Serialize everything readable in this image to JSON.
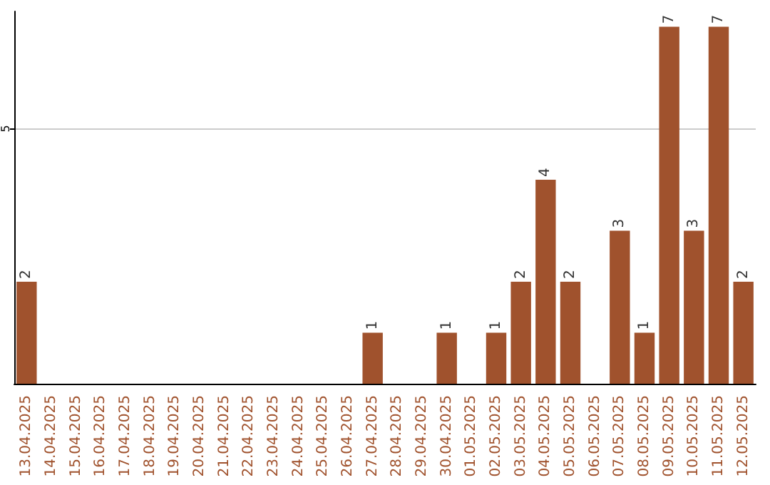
{
  "chart_data": {
    "type": "bar",
    "categories": [
      "13.04.2025",
      "14.04.2025",
      "15.04.2025",
      "16.04.2025",
      "17.04.2025",
      "18.04.2025",
      "19.04.2025",
      "20.04.2025",
      "21.04.2025",
      "22.04.2025",
      "23.04.2025",
      "24.04.2025",
      "25.04.2025",
      "26.04.2025",
      "27.04.2025",
      "28.04.2025",
      "29.04.2025",
      "30.04.2025",
      "01.05.2025",
      "02.05.2025",
      "03.05.2025",
      "04.05.2025",
      "05.05.2025",
      "06.05.2025",
      "07.05.2025",
      "08.05.2025",
      "09.05.2025",
      "10.05.2025",
      "11.05.2025",
      "12.05.2025"
    ],
    "values": [
      2,
      0,
      0,
      0,
      0,
      0,
      0,
      0,
      0,
      0,
      0,
      0,
      0,
      0,
      1,
      0,
      0,
      1,
      0,
      1,
      2,
      4,
      2,
      0,
      3,
      1,
      7,
      3,
      7,
      2
    ],
    "value_labels": [
      "2",
      null,
      null,
      null,
      null,
      null,
      null,
      null,
      null,
      null,
      null,
      null,
      null,
      null,
      "1",
      null,
      null,
      "1",
      null,
      "1",
      "2",
      "4",
      "2",
      null,
      "3",
      "1",
      "7",
      "3",
      "7",
      "2"
    ],
    "color": "#a0522d",
    "ylim": [
      0,
      7.3
    ],
    "yticks": [
      5
    ],
    "grid": "y"
  }
}
